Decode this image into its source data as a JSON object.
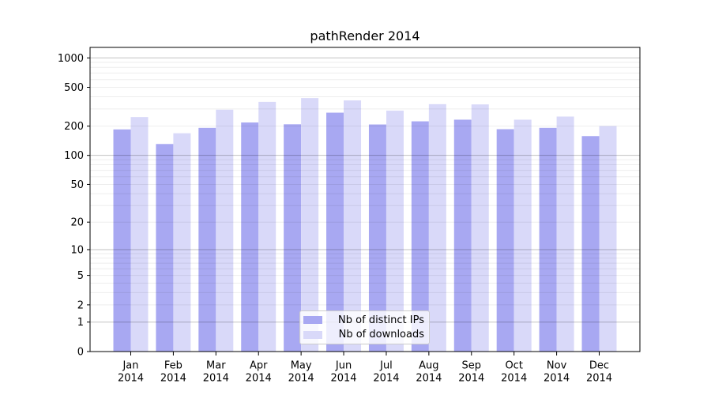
{
  "chart_data": {
    "type": "bar",
    "title": "pathRender 2014",
    "categories": [
      "Jan",
      "Feb",
      "Mar",
      "Apr",
      "May",
      "Jun",
      "Jul",
      "Aug",
      "Sep",
      "Oct",
      "Nov",
      "Dec"
    ],
    "x_year": "2014",
    "series": [
      {
        "name": "Nb of distinct IPs",
        "color": "#a8a8f2",
        "values": [
          185,
          131,
          192,
          218,
          209,
          275,
          208,
          224,
          233,
          186,
          192,
          158
        ]
      },
      {
        "name": "Nb of downloads",
        "color": "#d9d9f9",
        "values": [
          248,
          169,
          295,
          355,
          388,
          367,
          288,
          336,
          334,
          233,
          251,
          200
        ]
      }
    ],
    "y_scale": "log1p",
    "y_ticks": [
      1000,
      500,
      200,
      100,
      50,
      20,
      10,
      5,
      2,
      1,
      0
    ],
    "ylim": [
      0,
      1280
    ],
    "grid": {
      "major_lines": [
        1,
        10,
        100,
        1000
      ],
      "minor_multiples": [
        2,
        3,
        4,
        5,
        6,
        7,
        8,
        9
      ],
      "minor_decades": [
        1,
        10,
        100
      ]
    },
    "legend": {
      "position": "lower center"
    }
  },
  "colors": {
    "background": "#ffffff",
    "grid_major": "rgba(0,0,0,0.24)",
    "grid_minor": "rgba(0,0,0,0.07)",
    "axis": "#000000",
    "text": "#000000",
    "legend_border": "#cccccc"
  }
}
